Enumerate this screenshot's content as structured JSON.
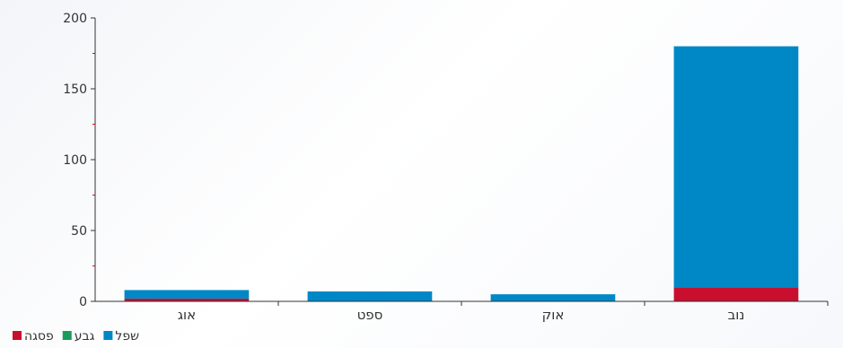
{
  "chart_data": {
    "type": "bar",
    "stacked": true,
    "title": "",
    "xlabel": "",
    "ylabel": "",
    "categories": [
      "אוג",
      "ספט",
      "אוק",
      "נוב"
    ],
    "ylim": [
      0,
      200
    ],
    "y_ticks": [
      0,
      50,
      100,
      150,
      200
    ],
    "grid": false,
    "legend_position": "bottom-left",
    "series": [
      {
        "name": "פסגה",
        "color": "#c8102e",
        "values": [
          2,
          0,
          0,
          10
        ]
      },
      {
        "name": "גבע",
        "color": "#1a9b5c",
        "values": [
          0,
          0,
          0,
          0
        ]
      },
      {
        "name": "שפל",
        "color": "#0088c6",
        "values": [
          6,
          7,
          5,
          170
        ]
      }
    ],
    "legend_order": [
      "פסגה",
      "גבע",
      "שפל"
    ]
  }
}
